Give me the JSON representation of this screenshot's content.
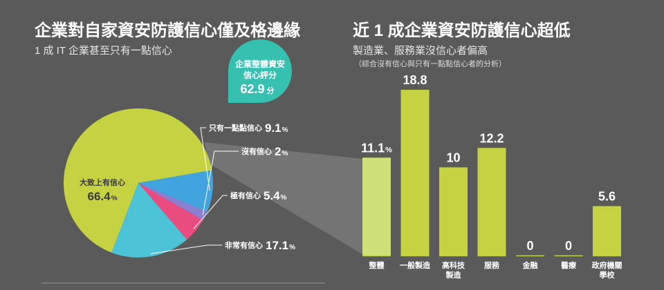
{
  "colors": {
    "background": "#5a5a5a",
    "lime": "#c5d342",
    "cyan": "#4cc3d6",
    "blue": "#41a4df",
    "purple": "#8a7fd1",
    "pink": "#e94d80",
    "bubble": "#35c0b0",
    "bar_overall": "#cfe07a",
    "bar_default": "#c5d342",
    "leader": "#ffffff",
    "text": "#ffffff"
  },
  "left": {
    "title": "企業對自家資安防護信心僅及格邊緣",
    "subtitle": "1 成 IT 企業甚至只有一點信心",
    "bubble": {
      "line1": "企業整體資安",
      "line2": "信心評分",
      "score": "62.9",
      "unit": "分"
    }
  },
  "right": {
    "title": "近 1 成企業資安防護信心超低",
    "subtitle": "製造業、服務業沒信心者偏高",
    "note": "（綜合沒有信心與只有一點點信心者的分析）"
  },
  "chart_data": [
    {
      "type": "pie",
      "title": "企業對自家資安防護信心僅及格邊緣",
      "subtitle": "1 成 IT 企業甚至只有一點信心",
      "unit": "%",
      "slices": [
        {
          "label": "大致上有信心",
          "value": 66.4,
          "value_text": "66.4",
          "color": "#c5d342"
        },
        {
          "label": "只有一點點信心",
          "value": 9.1,
          "value_text": "9.1",
          "color": "#41a4df"
        },
        {
          "label": "沒有信心",
          "value": 2,
          "value_text": "2",
          "color": "#8a7fd1"
        },
        {
          "label": "極有信心",
          "value": 5.4,
          "value_text": "5.4",
          "color": "#e94d80"
        },
        {
          "label": "非常有信心",
          "value": 17.1,
          "value_text": "17.1",
          "color": "#4cc3d6"
        }
      ]
    },
    {
      "type": "bar",
      "title": "近 1 成企業資安防護信心超低",
      "subtitle": "製造業、服務業沒信心者偏高",
      "categories": [
        {
          "label": "整體",
          "lines": [
            "整體"
          ]
        },
        {
          "label": "一般製造",
          "lines": [
            "一般製造"
          ]
        },
        {
          "label": "高科技製造",
          "lines": [
            "高科技",
            "製造"
          ]
        },
        {
          "label": "服務",
          "lines": [
            "服務"
          ]
        },
        {
          "label": "金融",
          "lines": [
            "金融"
          ]
        },
        {
          "label": "醫療",
          "lines": [
            "醫療"
          ]
        },
        {
          "label": "政府機關學校",
          "lines": [
            "政府機關",
            "學校"
          ]
        }
      ],
      "values": [
        11.1,
        18.8,
        10,
        12.2,
        0,
        0,
        5.6
      ],
      "value_labels": [
        "11.1",
        "18.8",
        "10",
        "12.2",
        "0",
        "0",
        "5.6"
      ],
      "value_units": [
        "%",
        "",
        "",
        "",
        "",
        "",
        ""
      ],
      "ylim": [
        0,
        20
      ],
      "grid": false
    }
  ]
}
